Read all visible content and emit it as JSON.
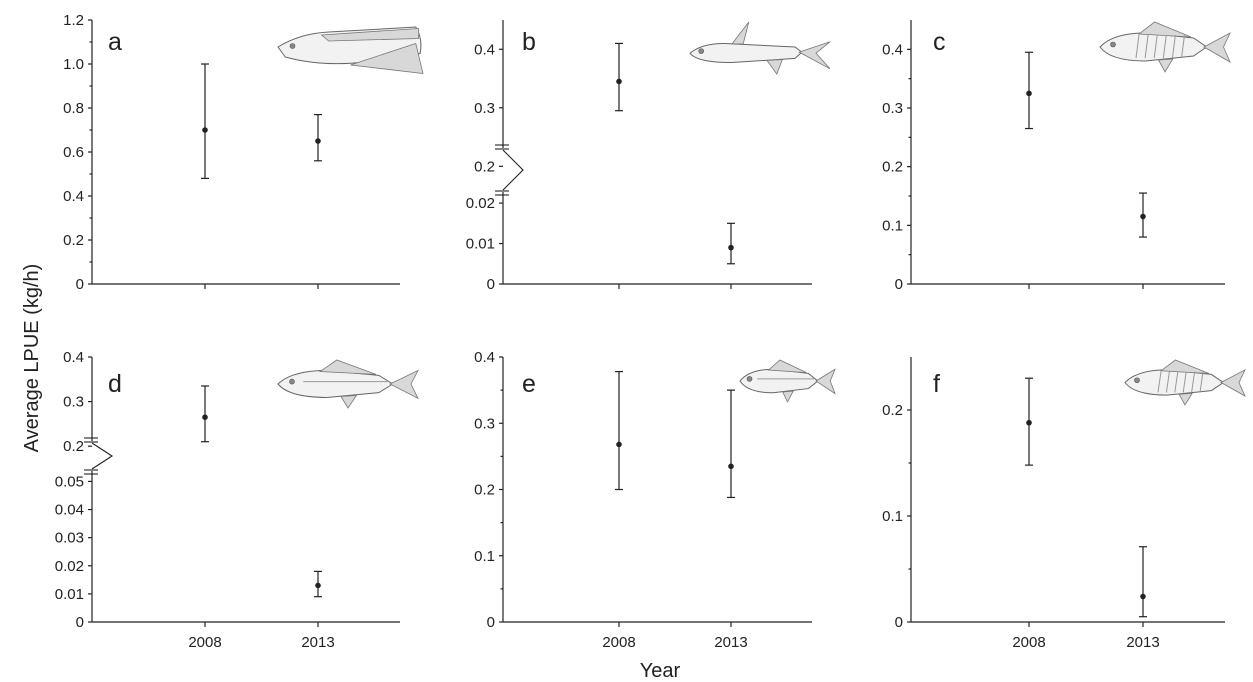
{
  "chart_data": [
    {
      "type": "scatter",
      "panel": "a",
      "categories": [
        "2008",
        "2013"
      ],
      "values": [
        0.7,
        0.65
      ],
      "error_low": [
        0.48,
        0.56
      ],
      "error_high": [
        1.0,
        0.77
      ],
      "yticks": [
        "0",
        "0.2",
        "0.4",
        "0.6",
        "0.8",
        "1.0",
        "1.2"
      ],
      "ylim": [
        0,
        1.2
      ],
      "illustration": "cutlassfish-icon"
    },
    {
      "type": "scatter",
      "panel": "b",
      "categories": [
        "2008",
        "2013"
      ],
      "values": [
        0.345,
        0.009
      ],
      "error_low": [
        0.295,
        0.005
      ],
      "error_high": [
        0.41,
        0.015
      ],
      "axis_break": true,
      "yticks_lower": [
        "0",
        "0.01",
        "0.02"
      ],
      "yticks_upper": [
        "0.2",
        "0.3",
        "0.4"
      ],
      "ylim_lower": [
        0,
        0.022
      ],
      "ylim_upper": [
        0.18,
        0.45
      ],
      "illustration": "catfish-icon"
    },
    {
      "type": "scatter",
      "panel": "c",
      "categories": [
        "2008",
        "2013"
      ],
      "values": [
        0.325,
        0.115
      ],
      "error_low": [
        0.265,
        0.08
      ],
      "error_high": [
        0.395,
        0.155
      ],
      "yticks": [
        "0",
        "0.1",
        "0.2",
        "0.3",
        "0.4"
      ],
      "ylim": [
        0,
        0.45
      ],
      "illustration": "perch-icon"
    },
    {
      "type": "scatter",
      "panel": "d",
      "categories": [
        "2008",
        "2013"
      ],
      "values": [
        0.265,
        0.013
      ],
      "error_low": [
        0.21,
        0.009
      ],
      "error_high": [
        0.335,
        0.018
      ],
      "axis_break": true,
      "yticks_lower": [
        "0",
        "0.01",
        "0.02",
        "0.03",
        "0.04",
        "0.05"
      ],
      "yticks_upper": [
        "0.2",
        "0.3",
        "0.4"
      ],
      "ylim_lower": [
        0,
        0.053
      ],
      "ylim_upper": [
        0.16,
        0.4
      ],
      "illustration": "croaker-icon"
    },
    {
      "type": "scatter",
      "panel": "e",
      "categories": [
        "2008",
        "2013"
      ],
      "values": [
        0.268,
        0.235
      ],
      "error_low": [
        0.2,
        0.188
      ],
      "error_high": [
        0.378,
        0.35
      ],
      "yticks": [
        "0",
        "0.1",
        "0.2",
        "0.3",
        "0.4"
      ],
      "ylim": [
        0,
        0.4
      ],
      "illustration": "small-croaker-icon"
    },
    {
      "type": "scatter",
      "panel": "f",
      "categories": [
        "2008",
        "2013"
      ],
      "values": [
        0.188,
        0.024
      ],
      "error_low": [
        0.148,
        0.005
      ],
      "error_high": [
        0.23,
        0.071
      ],
      "yticks": [
        "0",
        "0.1",
        "0.2"
      ],
      "ylim": [
        0,
        0.25
      ],
      "illustration": "striped-drum-icon"
    }
  ],
  "labels": {
    "ylabel": "Average LPUE (kg/h)",
    "xlabel": "Year"
  }
}
